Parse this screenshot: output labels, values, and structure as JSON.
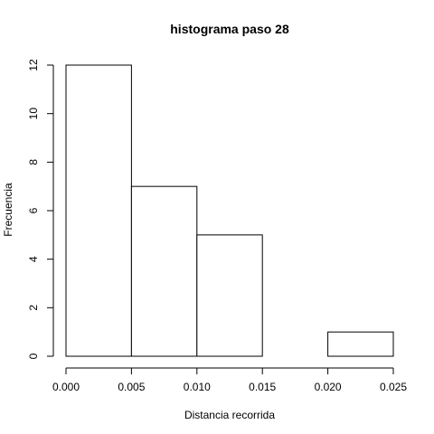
{
  "chart_data": {
    "type": "bar",
    "subtype": "histogram",
    "title": "histograma paso  28",
    "xlabel": "Distancia recorrida",
    "ylabel": "Frecuencia",
    "bins": [
      {
        "start": 0.0,
        "end": 0.005,
        "count": 12
      },
      {
        "start": 0.005,
        "end": 0.01,
        "count": 7
      },
      {
        "start": 0.01,
        "end": 0.015,
        "count": 5
      },
      {
        "start": 0.015,
        "end": 0.02,
        "count": 0
      },
      {
        "start": 0.02,
        "end": 0.025,
        "count": 1
      }
    ],
    "xlim": [
      0.0,
      0.025
    ],
    "ylim": [
      0,
      12
    ],
    "xticks": [
      0.0,
      0.005,
      0.01,
      0.015,
      0.02,
      0.025
    ],
    "xtick_labels": [
      "0.000",
      "0.005",
      "0.010",
      "0.015",
      "0.020",
      "0.025"
    ],
    "yticks": [
      0,
      2,
      4,
      6,
      8,
      10,
      12
    ],
    "ytick_labels": [
      "0",
      "2",
      "4",
      "6",
      "8",
      "10",
      "12"
    ],
    "bar_fill": "#ffffff",
    "bar_stroke": "#000000",
    "grid": false,
    "legend": "none"
  }
}
